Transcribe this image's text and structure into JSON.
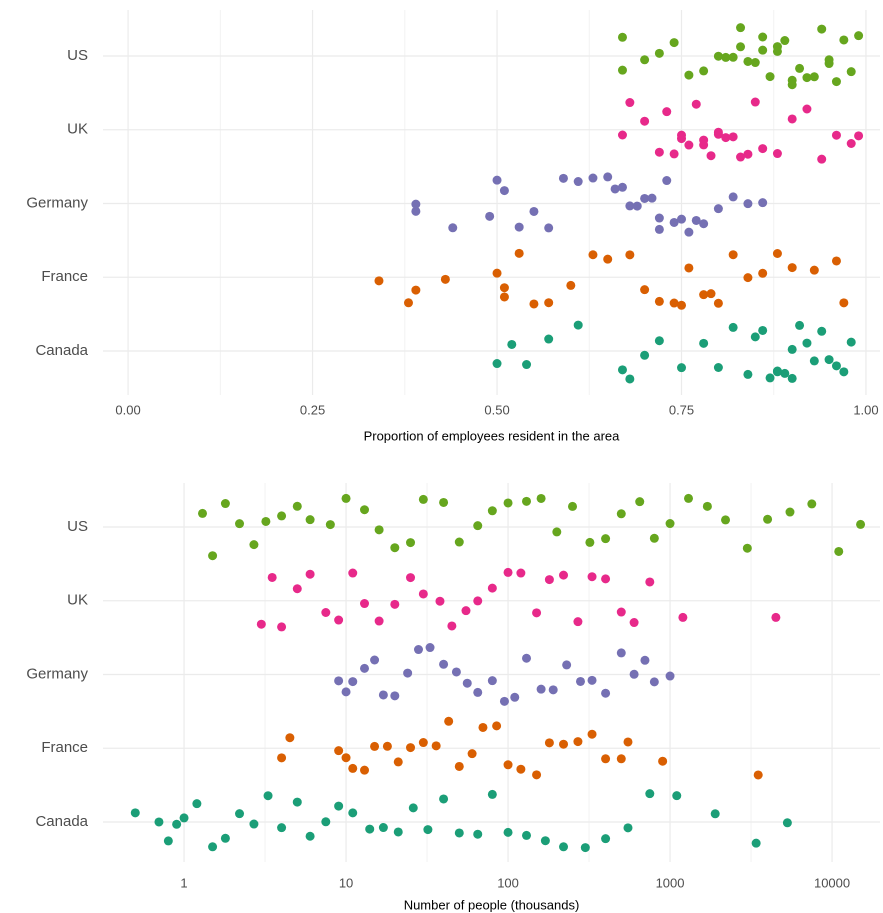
{
  "chart_data": [
    {
      "type": "strip",
      "x_label": "Proportion of employees resident in the area",
      "categories": [
        "US",
        "UK",
        "Germany",
        "France",
        "Canada"
      ],
      "colors": [
        "#66a61e",
        "#e7298a",
        "#7570b3",
        "#d95f02",
        "#1b9e77"
      ],
      "xlim": [
        -0.034,
        1.019
      ],
      "xticks": [
        {
          "value": 0,
          "label": "0.00"
        },
        {
          "value": 0.25,
          "label": "0.25"
        },
        {
          "value": 0.5,
          "label": "0.50"
        },
        {
          "value": 0.75,
          "label": "0.75"
        },
        {
          "value": 1,
          "label": "1.00"
        }
      ],
      "x_minor_ticks": [
        0.125,
        0.375,
        0.625,
        0.875
      ],
      "log_x": false,
      "grid": true,
      "values": [
        [
          0.67,
          0.67,
          0.7,
          0.72,
          0.74,
          0.76,
          0.78,
          0.8,
          0.81,
          0.82,
          0.83,
          0.84,
          0.85,
          0.86,
          0.87,
          0.88,
          0.88,
          0.89,
          0.9,
          0.91,
          0.92,
          0.93,
          0.94,
          0.95,
          0.96,
          0.97,
          0.98,
          0.99,
          0.9,
          0.86,
          0.83,
          0.95
        ],
        [
          0.67,
          0.68,
          0.7,
          0.72,
          0.73,
          0.74,
          0.75,
          0.76,
          0.77,
          0.78,
          0.79,
          0.8,
          0.8,
          0.81,
          0.82,
          0.83,
          0.84,
          0.85,
          0.86,
          0.88,
          0.9,
          0.92,
          0.94,
          0.96,
          0.98,
          0.99,
          0.78,
          0.75
        ],
        [
          0.39,
          0.39,
          0.44,
          0.49,
          0.5,
          0.51,
          0.53,
          0.55,
          0.57,
          0.59,
          0.61,
          0.63,
          0.65,
          0.66,
          0.68,
          0.69,
          0.7,
          0.71,
          0.72,
          0.73,
          0.74,
          0.75,
          0.76,
          0.77,
          0.78,
          0.8,
          0.82,
          0.84,
          0.86,
          0.72,
          0.67
        ],
        [
          0.34,
          0.38,
          0.39,
          0.43,
          0.5,
          0.51,
          0.51,
          0.53,
          0.55,
          0.57,
          0.6,
          0.63,
          0.65,
          0.68,
          0.7,
          0.72,
          0.74,
          0.76,
          0.78,
          0.8,
          0.82,
          0.84,
          0.86,
          0.88,
          0.9,
          0.93,
          0.96,
          0.97,
          0.79,
          0.75
        ],
        [
          0.5,
          0.52,
          0.54,
          0.57,
          0.61,
          0.67,
          0.68,
          0.7,
          0.72,
          0.75,
          0.78,
          0.8,
          0.82,
          0.84,
          0.85,
          0.86,
          0.87,
          0.88,
          0.89,
          0.9,
          0.91,
          0.92,
          0.93,
          0.94,
          0.95,
          0.96,
          0.97,
          0.98,
          0.88,
          0.9
        ]
      ]
    },
    {
      "type": "strip",
      "x_label": "Number of people (thousands)",
      "categories": [
        "US",
        "UK",
        "Germany",
        "France",
        "Canada"
      ],
      "colors": [
        "#66a61e",
        "#e7298a",
        "#7570b3",
        "#d95f02",
        "#1b9e77"
      ],
      "xlim": [
        0.316,
        19770
      ],
      "xticks": [
        1,
        10,
        100,
        1000,
        10000
      ],
      "x_minor_ticks": [
        3.162,
        31.62,
        316.2,
        3162
      ],
      "log_x": true,
      "grid": true,
      "values": [
        [
          1.3,
          1.5,
          1.8,
          2.2,
          2.7,
          3.2,
          4,
          5,
          6,
          8,
          10,
          13,
          16,
          20,
          25,
          30,
          40,
          50,
          65,
          80,
          100,
          130,
          160,
          200,
          250,
          320,
          400,
          500,
          650,
          800,
          1000,
          1300,
          1700,
          2200,
          3000,
          4000,
          5500,
          7500,
          11000,
          15000
        ],
        [
          3,
          3.5,
          4,
          5,
          6,
          7.5,
          9,
          11,
          13,
          16,
          20,
          25,
          30,
          38,
          45,
          55,
          65,
          80,
          100,
          120,
          150,
          180,
          220,
          270,
          330,
          400,
          500,
          600,
          750,
          1200,
          4500
        ],
        [
          9,
          10,
          11,
          13,
          15,
          17,
          20,
          24,
          28,
          33,
          40,
          48,
          56,
          65,
          80,
          95,
          110,
          130,
          160,
          190,
          230,
          280,
          330,
          400,
          500,
          600,
          700,
          800,
          1000
        ],
        [
          4,
          4.5,
          9,
          10,
          11,
          13,
          15,
          18,
          21,
          25,
          30,
          36,
          43,
          50,
          60,
          70,
          85,
          100,
          120,
          150,
          180,
          220,
          270,
          330,
          400,
          500,
          550,
          900,
          3500
        ],
        [
          0.5,
          0.7,
          0.8,
          0.9,
          1,
          1.2,
          1.5,
          1.8,
          2.2,
          2.7,
          3.3,
          4,
          5,
          6,
          7.5,
          9,
          11,
          14,
          17,
          21,
          26,
          32,
          40,
          50,
          65,
          80,
          100,
          130,
          170,
          220,
          300,
          400,
          550,
          750,
          1100,
          1900,
          3400,
          5300
        ]
      ]
    }
  ]
}
